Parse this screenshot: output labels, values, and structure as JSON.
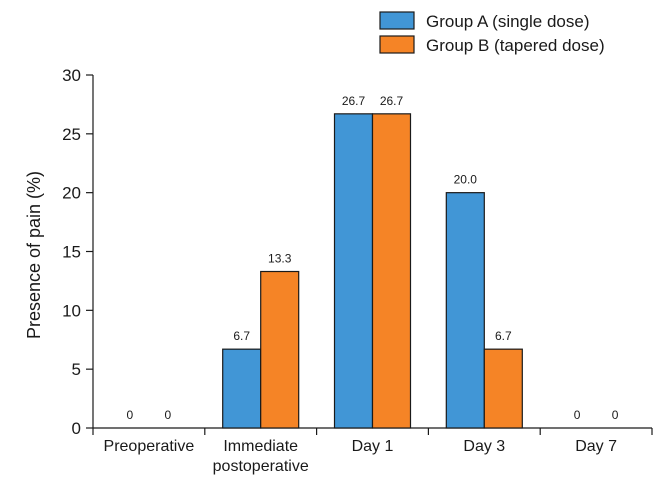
{
  "chart_data": {
    "type": "bar",
    "title": "",
    "xlabel": "",
    "ylabel": "Presence of pain (%)",
    "ylim": [
      0,
      30
    ],
    "yticks": [
      0,
      5,
      10,
      15,
      20,
      25,
      30
    ],
    "grid": false,
    "legend_position": "top-right",
    "categories": [
      [
        "Preoperative"
      ],
      [
        "Immediate",
        "postoperative"
      ],
      [
        "Day 1"
      ],
      [
        "Day 3"
      ],
      [
        "Day 7"
      ]
    ],
    "series": [
      {
        "name": "Group A (single dose)",
        "color": "#4196d6",
        "values": [
          0,
          6.7,
          26.7,
          20.0,
          0
        ],
        "labels": [
          "0",
          "6.7",
          "26.7",
          "20.0",
          "0"
        ]
      },
      {
        "name": "Group B (tapered dose)",
        "color": "#f58426",
        "values": [
          0,
          13.3,
          26.7,
          6.7,
          0
        ],
        "labels": [
          "0",
          "13.3",
          "26.7",
          "6.7",
          "0"
        ]
      }
    ]
  }
}
